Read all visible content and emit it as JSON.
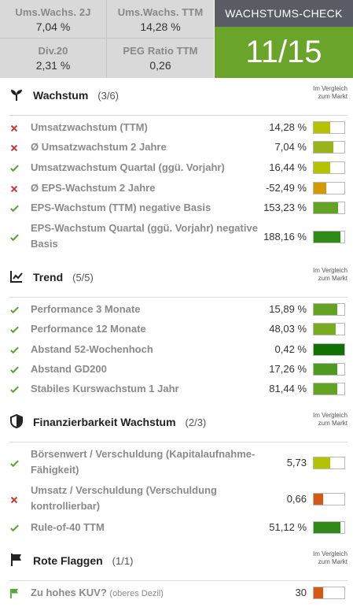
{
  "kpis": [
    {
      "label": "Ums.Wachs. 2J",
      "value": "7,04 %"
    },
    {
      "label": "Ums.Wachs. TTM",
      "value": "14,28 %"
    },
    {
      "label": "Div.20",
      "value": "2,31 %"
    },
    {
      "label": "PEG Ratio TTM",
      "value": "0,26"
    }
  ],
  "check": {
    "title": "WACHSTUMS-CHECK",
    "score": "11/15",
    "color": "#6aa42b"
  },
  "compare_label_1": "Im Vergleich",
  "compare_label_2": "zum Markt",
  "colors": {
    "ok": "#5aa43a",
    "bad": "#cc3333",
    "lime": "#b5c200",
    "olive": "#99b31a",
    "green": "#63a321",
    "darkgreen": "#2f8a17",
    "deepgreen": "#107000",
    "amber": "#d29a00",
    "orange": "#d45a14"
  },
  "sections": [
    {
      "icon": "sprout-icon",
      "title": "Wachstum",
      "count": "(3/6)",
      "rows": [
        {
          "status": "bad",
          "label": "Umsatzwachstum (TTM)",
          "value": "14,28 %",
          "level": 0.55,
          "color": "#b5c200"
        },
        {
          "status": "bad",
          "label": "Ø Umsatzwachstum 2 Jahre",
          "value": "7,04 %",
          "level": 0.65,
          "color": "#99b31a"
        },
        {
          "status": "ok",
          "label": "Umsatzwachstum Quartal (ggü. Vorjahr)",
          "value": "16,44 %",
          "level": 0.55,
          "color": "#b5c200"
        },
        {
          "status": "bad",
          "label": "Ø EPS-Wachstum 2 Jahre",
          "value": "-52,49 %",
          "level": 0.42,
          "color": "#d29a00"
        },
        {
          "status": "ok",
          "label": "EPS-Wachstum (TTM) negative Basis",
          "value": "153,23 %",
          "level": 0.8,
          "color": "#63a321"
        },
        {
          "status": "ok",
          "label": "EPS-Wachstum Quartal (ggü. Vorjahr) negative Basis",
          "value": "188,16 %",
          "level": 0.88,
          "color": "#2f8a17"
        }
      ]
    },
    {
      "icon": "trend-chart-icon",
      "title": "Trend",
      "count": "(5/5)",
      "rows": [
        {
          "status": "ok",
          "label": "Performance 3 Monate",
          "value": "15,89 %",
          "level": 0.78,
          "color": "#63a321"
        },
        {
          "status": "ok",
          "label": "Performance 12 Monate",
          "value": "48,03 %",
          "level": 0.72,
          "color": "#79ab1e"
        },
        {
          "status": "ok",
          "label": "Abstand 52-Wochenhoch",
          "value": "0,42 %",
          "level": 1.0,
          "color": "#107000"
        },
        {
          "status": "ok",
          "label": "Abstand GD200",
          "value": "17,26 %",
          "level": 0.78,
          "color": "#4e9a21"
        },
        {
          "status": "ok",
          "label": "Stabiles Kurswachstum 1 Jahr",
          "value": "81,44 %",
          "level": 0.78,
          "color": "#63a321"
        }
      ]
    },
    {
      "icon": "shield-icon",
      "title": "Finanzierbarkeit Wachstum",
      "count": "(2/3)",
      "rows": [
        {
          "status": "ok",
          "label": "Börsenwert / Verschuldung (Kapitalaufnahme-Fähigkeit)",
          "value": "5,73",
          "level": 0.55,
          "color": "#b5c200"
        },
        {
          "status": "bad",
          "label": "Umsatz / Verschuldung (Verschuldung kontrollierbar)",
          "value": "0,66",
          "level": 0.32,
          "color": "#d45a14"
        },
        {
          "status": "ok",
          "label": "Rule-of-40 TTM",
          "value": "51,12 %",
          "level": 0.88,
          "color": "#2f8a17"
        }
      ]
    },
    {
      "icon": "flag-icon",
      "title": "Rote Flaggen",
      "count": "(1/1)",
      "rows": [
        {
          "status": "flag",
          "label": "Zu hohes KUV?",
          "note": "(oberes Dezil)",
          "value": "30",
          "level": 0.32,
          "color": "#d45a14"
        }
      ]
    }
  ]
}
